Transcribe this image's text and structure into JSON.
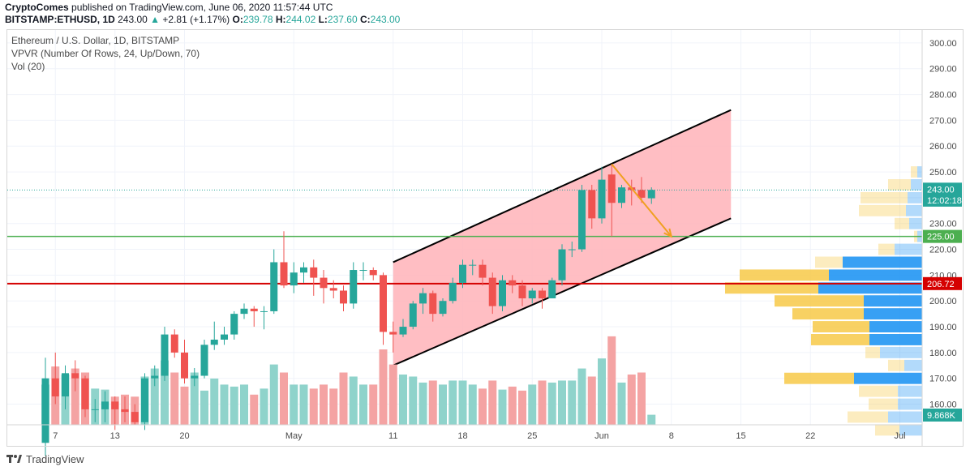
{
  "header": {
    "author": "CryptoComes",
    "published_text": "published on TradingView.com, June 06, 2020 11:57:44 UTC",
    "symbol": "BITSTAMP:ETHUSD, 1D",
    "last": "243.00",
    "change": "+2.81 (+1.17%)",
    "open_label": "O:",
    "open": "239.78",
    "high_label": "H:",
    "high": "244.02",
    "low_label": "L:",
    "low": "237.60",
    "close_label": "C:",
    "close": "243.00"
  },
  "legend": {
    "title": "Ethereum / U.S. Dollar, 1D, BITSTAMP",
    "indicator1": "VPVR (Number Of Rows, 24, Up/Down, 70)",
    "indicator2": "Vol (20)"
  },
  "footer": {
    "brand": "TradingView"
  },
  "colors": {
    "up": "#26a69a",
    "down": "#ef5350",
    "vol_up": "#8fd3cb",
    "vol_down": "#f4a3a3",
    "channel_fill": "#ffb3b8",
    "support": "#4caf50",
    "resistance": "#d50000",
    "vp_up": "#2196f3",
    "vp_down": "#f7c948",
    "arrow": "#f0a020"
  },
  "chart_data": {
    "type": "candlestick",
    "y_axis": {
      "min": 152,
      "max": 305,
      "ticks": [
        160,
        170,
        180,
        190,
        200,
        210,
        220,
        230,
        240,
        250,
        260,
        270,
        280,
        290,
        300
      ]
    },
    "x_axis": {
      "labels": [
        {
          "text": "7",
          "date": "2020-04-07"
        },
        {
          "text": "13",
          "date": "2020-04-13"
        },
        {
          "text": "20",
          "date": "2020-04-20"
        },
        {
          "text": "May",
          "date": "2020-05-01"
        },
        {
          "text": "11",
          "date": "2020-05-11"
        },
        {
          "text": "18",
          "date": "2020-05-18"
        },
        {
          "text": "25",
          "date": "2020-05-25"
        },
        {
          "text": "Jun",
          "date": "2020-06-01"
        },
        {
          "text": "8",
          "date": "2020-06-08"
        },
        {
          "text": "15",
          "date": "2020-06-15"
        },
        {
          "text": "22",
          "date": "2020-06-22"
        },
        {
          "text": "Jul",
          "date": "2020-07-01"
        }
      ]
    },
    "candles": [
      {
        "date": "2020-04-06",
        "o": 145,
        "h": 178,
        "l": 140,
        "c": 170
      },
      {
        "date": "2020-04-07",
        "o": 170,
        "h": 180,
        "l": 160,
        "c": 163
      },
      {
        "date": "2020-04-08",
        "o": 163,
        "h": 175,
        "l": 158,
        "c": 172
      },
      {
        "date": "2020-04-09",
        "o": 172,
        "h": 177,
        "l": 165,
        "c": 170
      },
      {
        "date": "2020-04-10",
        "o": 170,
        "h": 171,
        "l": 155,
        "c": 158
      },
      {
        "date": "2020-04-11",
        "o": 158,
        "h": 162,
        "l": 153,
        "c": 158
      },
      {
        "date": "2020-04-12",
        "o": 158,
        "h": 165,
        "l": 153,
        "c": 161
      },
      {
        "date": "2020-04-13",
        "o": 161,
        "h": 163,
        "l": 150,
        "c": 158
      },
      {
        "date": "2020-04-14",
        "o": 158,
        "h": 163,
        "l": 153,
        "c": 157
      },
      {
        "date": "2020-04-15",
        "o": 157,
        "h": 160,
        "l": 152,
        "c": 153
      },
      {
        "date": "2020-04-16",
        "o": 153,
        "h": 172,
        "l": 150,
        "c": 170
      },
      {
        "date": "2020-04-17",
        "o": 170,
        "h": 175,
        "l": 167,
        "c": 171
      },
      {
        "date": "2020-04-18",
        "o": 171,
        "h": 190,
        "l": 169,
        "c": 187
      },
      {
        "date": "2020-04-19",
        "o": 187,
        "h": 189,
        "l": 178,
        "c": 180
      },
      {
        "date": "2020-04-20",
        "o": 180,
        "h": 185,
        "l": 168,
        "c": 170
      },
      {
        "date": "2020-04-21",
        "o": 170,
        "h": 174,
        "l": 167,
        "c": 171
      },
      {
        "date": "2020-04-22",
        "o": 171,
        "h": 185,
        "l": 170,
        "c": 183
      },
      {
        "date": "2020-04-23",
        "o": 183,
        "h": 192,
        "l": 181,
        "c": 185
      },
      {
        "date": "2020-04-24",
        "o": 185,
        "h": 190,
        "l": 183,
        "c": 187
      },
      {
        "date": "2020-04-25",
        "o": 187,
        "h": 196,
        "l": 185,
        "c": 195
      },
      {
        "date": "2020-04-26",
        "o": 195,
        "h": 199,
        "l": 193,
        "c": 197
      },
      {
        "date": "2020-04-27",
        "o": 197,
        "h": 198,
        "l": 190,
        "c": 196
      },
      {
        "date": "2020-04-28",
        "o": 196,
        "h": 198,
        "l": 189,
        "c": 196
      },
      {
        "date": "2020-04-29",
        "o": 196,
        "h": 220,
        "l": 195,
        "c": 215
      },
      {
        "date": "2020-04-30",
        "o": 215,
        "h": 227,
        "l": 205,
        "c": 206
      },
      {
        "date": "2020-05-01",
        "o": 206,
        "h": 215,
        "l": 203,
        "c": 211
      },
      {
        "date": "2020-05-02",
        "o": 211,
        "h": 215,
        "l": 207,
        "c": 213
      },
      {
        "date": "2020-05-03",
        "o": 213,
        "h": 216,
        "l": 202,
        "c": 209
      },
      {
        "date": "2020-05-04",
        "o": 209,
        "h": 212,
        "l": 199,
        "c": 205
      },
      {
        "date": "2020-05-05",
        "o": 205,
        "h": 208,
        "l": 201,
        "c": 204
      },
      {
        "date": "2020-05-06",
        "o": 204,
        "h": 206,
        "l": 196,
        "c": 199
      },
      {
        "date": "2020-05-07",
        "o": 199,
        "h": 215,
        "l": 197,
        "c": 212
      },
      {
        "date": "2020-05-08",
        "o": 212,
        "h": 215,
        "l": 208,
        "c": 212
      },
      {
        "date": "2020-05-09",
        "o": 212,
        "h": 213,
        "l": 208,
        "c": 210
      },
      {
        "date": "2020-05-10",
        "o": 210,
        "h": 211,
        "l": 183,
        "c": 188
      },
      {
        "date": "2020-05-11",
        "o": 188,
        "h": 192,
        "l": 180,
        "c": 187
      },
      {
        "date": "2020-05-12",
        "o": 187,
        "h": 193,
        "l": 186,
        "c": 190
      },
      {
        "date": "2020-05-13",
        "o": 190,
        "h": 200,
        "l": 189,
        "c": 199
      },
      {
        "date": "2020-05-14",
        "o": 199,
        "h": 205,
        "l": 195,
        "c": 203
      },
      {
        "date": "2020-05-15",
        "o": 203,
        "h": 204,
        "l": 192,
        "c": 195
      },
      {
        "date": "2020-05-16",
        "o": 195,
        "h": 201,
        "l": 194,
        "c": 200
      },
      {
        "date": "2020-05-17",
        "o": 200,
        "h": 209,
        "l": 199,
        "c": 207
      },
      {
        "date": "2020-05-18",
        "o": 207,
        "h": 216,
        "l": 205,
        "c": 214
      },
      {
        "date": "2020-05-19",
        "o": 214,
        "h": 216,
        "l": 210,
        "c": 214
      },
      {
        "date": "2020-05-20",
        "o": 214,
        "h": 216,
        "l": 206,
        "c": 209
      },
      {
        "date": "2020-05-21",
        "o": 209,
        "h": 211,
        "l": 195,
        "c": 198
      },
      {
        "date": "2020-05-22",
        "o": 198,
        "h": 210,
        "l": 196,
        "c": 208
      },
      {
        "date": "2020-05-23",
        "o": 208,
        "h": 210,
        "l": 203,
        "c": 206
      },
      {
        "date": "2020-05-24",
        "o": 206,
        "h": 208,
        "l": 198,
        "c": 201
      },
      {
        "date": "2020-05-25",
        "o": 201,
        "h": 205,
        "l": 199,
        "c": 204
      },
      {
        "date": "2020-05-26",
        "o": 204,
        "h": 205,
        "l": 197,
        "c": 201
      },
      {
        "date": "2020-05-27",
        "o": 201,
        "h": 209,
        "l": 201,
        "c": 208
      },
      {
        "date": "2020-05-28",
        "o": 208,
        "h": 222,
        "l": 206,
        "c": 220
      },
      {
        "date": "2020-05-29",
        "o": 220,
        "h": 223,
        "l": 217,
        "c": 220
      },
      {
        "date": "2020-05-30",
        "o": 220,
        "h": 245,
        "l": 219,
        "c": 243
      },
      {
        "date": "2020-05-31",
        "o": 243,
        "h": 245,
        "l": 228,
        "c": 232
      },
      {
        "date": "2020-06-01",
        "o": 232,
        "h": 252,
        "l": 230,
        "c": 247
      },
      {
        "date": "2020-06-02",
        "o": 249,
        "h": 253,
        "l": 225,
        "c": 238
      },
      {
        "date": "2020-06-03",
        "o": 238,
        "h": 245,
        "l": 236,
        "c": 244
      },
      {
        "date": "2020-06-04",
        "o": 244,
        "h": 247,
        "l": 237,
        "c": 243
      },
      {
        "date": "2020-06-05",
        "o": 243,
        "h": 248,
        "l": 238,
        "c": 240
      },
      {
        "date": "2020-06-06",
        "o": 239.78,
        "h": 244.02,
        "l": 237.6,
        "c": 243
      }
    ],
    "volume_pct": [
      40,
      58,
      50,
      56,
      52,
      36,
      35,
      28,
      30,
      28,
      48,
      56,
      64,
      52,
      38,
      52,
      34,
      46,
      40,
      38,
      40,
      30,
      36,
      60,
      52,
      40,
      40,
      36,
      40,
      36,
      52,
      48,
      40,
      40,
      75,
      60,
      50,
      48,
      42,
      44,
      40,
      44,
      44,
      40,
      36,
      44,
      35,
      38,
      34,
      40,
      44,
      42,
      44,
      44,
      56,
      48,
      66,
      88,
      42,
      50,
      52,
      10
    ],
    "volume_label": "9.868K",
    "channel": {
      "upper": [
        {
          "date": "2020-05-11",
          "price": 215
        },
        {
          "date": "2020-06-14",
          "price": 274
        }
      ],
      "lower": [
        {
          "date": "2020-05-11",
          "price": 175
        },
        {
          "date": "2020-06-14",
          "price": 232
        }
      ]
    },
    "arrow": {
      "from": {
        "date": "2020-06-02",
        "price": 253
      },
      "to": {
        "date": "2020-06-08",
        "price": 225
      }
    },
    "support_price": 225,
    "resistance_price": 206.72,
    "last_price": 243,
    "price_labels": [
      {
        "text": "243.00",
        "price": 243,
        "kind": "up"
      },
      {
        "text": "12:02:18",
        "price": 240,
        "kind": "up"
      },
      {
        "text": "225.00",
        "price": 225,
        "kind": "support"
      },
      {
        "text": "206.72",
        "price": 206.72,
        "kind": "resistance"
      }
    ],
    "volume_profile": [
      {
        "price": 250,
        "up": 6,
        "down": 8
      },
      {
        "price": 245,
        "up": 14,
        "down": 28
      },
      {
        "price": 240,
        "up": 18,
        "down": 58
      },
      {
        "price": 235,
        "up": 20,
        "down": 58
      },
      {
        "price": 230,
        "up": 16,
        "down": 18
      },
      {
        "price": 225,
        "up": 6,
        "down": 4
      },
      {
        "price": 220,
        "up": 34,
        "down": 20
      },
      {
        "price": 215,
        "up": 98,
        "down": 34
      },
      {
        "price": 210,
        "up": 115,
        "down": 110
      },
      {
        "price": 205,
        "up": 128,
        "down": 115
      },
      {
        "price": 200,
        "up": 72,
        "down": 110
      },
      {
        "price": 195,
        "up": 72,
        "down": 88
      },
      {
        "price": 190,
        "up": 65,
        "down": 70
      },
      {
        "price": 185,
        "up": 65,
        "down": 72
      },
      {
        "price": 180,
        "up": 52,
        "down": 18
      },
      {
        "price": 175,
        "up": 22,
        "down": 20
      },
      {
        "price": 170,
        "up": 84,
        "down": 86
      },
      {
        "price": 165,
        "up": 30,
        "down": 48
      },
      {
        "price": 160,
        "up": 30,
        "down": 36
      },
      {
        "price": 155,
        "up": 42,
        "down": 50
      },
      {
        "price": 150,
        "up": 28,
        "down": 30
      }
    ]
  }
}
